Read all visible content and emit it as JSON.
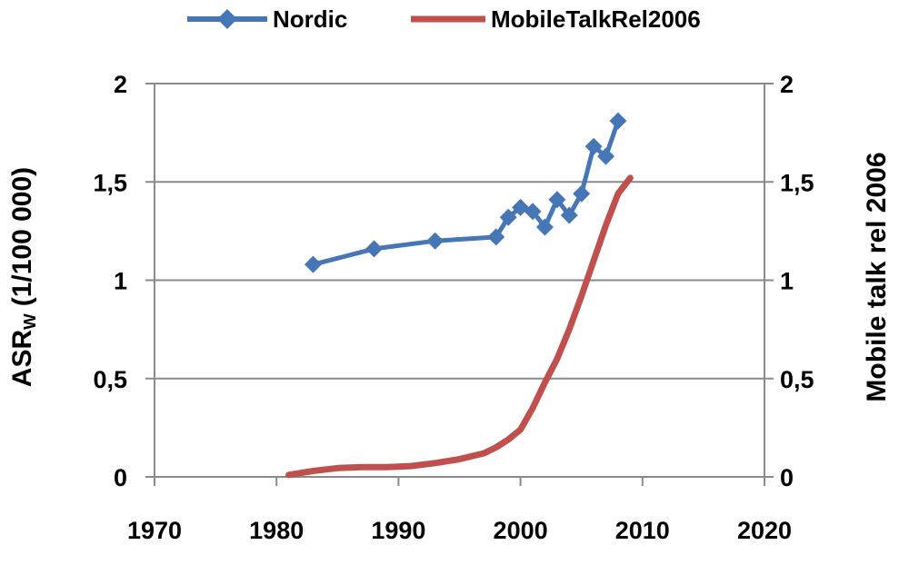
{
  "chart_data": {
    "type": "line",
    "title": "",
    "grid": true,
    "legend_position": "top",
    "axis_color": "#8a8a8a",
    "text_color": "#000000",
    "x_axis": {
      "ticks": [
        "1970",
        "1980",
        "1990",
        "2000",
        "2010",
        "2020"
      ],
      "tick_values": [
        1970,
        1980,
        1990,
        2000,
        2010,
        2020
      ],
      "range": [
        1970,
        2020
      ]
    },
    "y_axis_left": {
      "label": {
        "prefix": "ASR",
        "sub": "W",
        "suffix": "(1/100 000)"
      },
      "ticks": [
        "0",
        "0,5",
        "1",
        "1,5",
        "2"
      ],
      "tick_values": [
        0,
        0.5,
        1,
        1.5,
        2
      ],
      "range": [
        0,
        2
      ]
    },
    "y_axis_right": {
      "label": "Mobile talk rel 2006",
      "ticks": [
        "0",
        "0,5",
        "1",
        "1,5",
        "2"
      ],
      "tick_values": [
        0,
        0.5,
        1,
        1.5,
        2
      ],
      "range": [
        0,
        2
      ]
    },
    "series": [
      {
        "name": "Nordic",
        "color": "#4576b5",
        "marker": "diamond",
        "axis": "left",
        "points": [
          [
            1983,
            1.08
          ],
          [
            1988,
            1.16
          ],
          [
            1993,
            1.2
          ],
          [
            1998,
            1.22
          ],
          [
            1999,
            1.32
          ],
          [
            2000,
            1.37
          ],
          [
            2001,
            1.35
          ],
          [
            2002,
            1.27
          ],
          [
            2003,
            1.41
          ],
          [
            2004,
            1.33
          ],
          [
            2005,
            1.44
          ],
          [
            2006,
            1.68
          ],
          [
            2007,
            1.63
          ],
          [
            2008,
            1.81
          ]
        ]
      },
      {
        "name": "MobileTalkRel2006",
        "color": "#c0504d",
        "marker": "none",
        "axis": "right",
        "points": [
          [
            1981,
            0.01
          ],
          [
            1983,
            0.03
          ],
          [
            1985,
            0.045
          ],
          [
            1987,
            0.05
          ],
          [
            1989,
            0.05
          ],
          [
            1991,
            0.055
          ],
          [
            1993,
            0.07
          ],
          [
            1995,
            0.09
          ],
          [
            1997,
            0.12
          ],
          [
            1998,
            0.15
          ],
          [
            1999,
            0.19
          ],
          [
            2000,
            0.24
          ],
          [
            2001,
            0.35
          ],
          [
            2002,
            0.48
          ],
          [
            2003,
            0.6
          ],
          [
            2004,
            0.75
          ],
          [
            2005,
            0.92
          ],
          [
            2006,
            1.1
          ],
          [
            2007,
            1.28
          ],
          [
            2008,
            1.44
          ],
          [
            2009,
            1.52
          ]
        ]
      }
    ]
  }
}
